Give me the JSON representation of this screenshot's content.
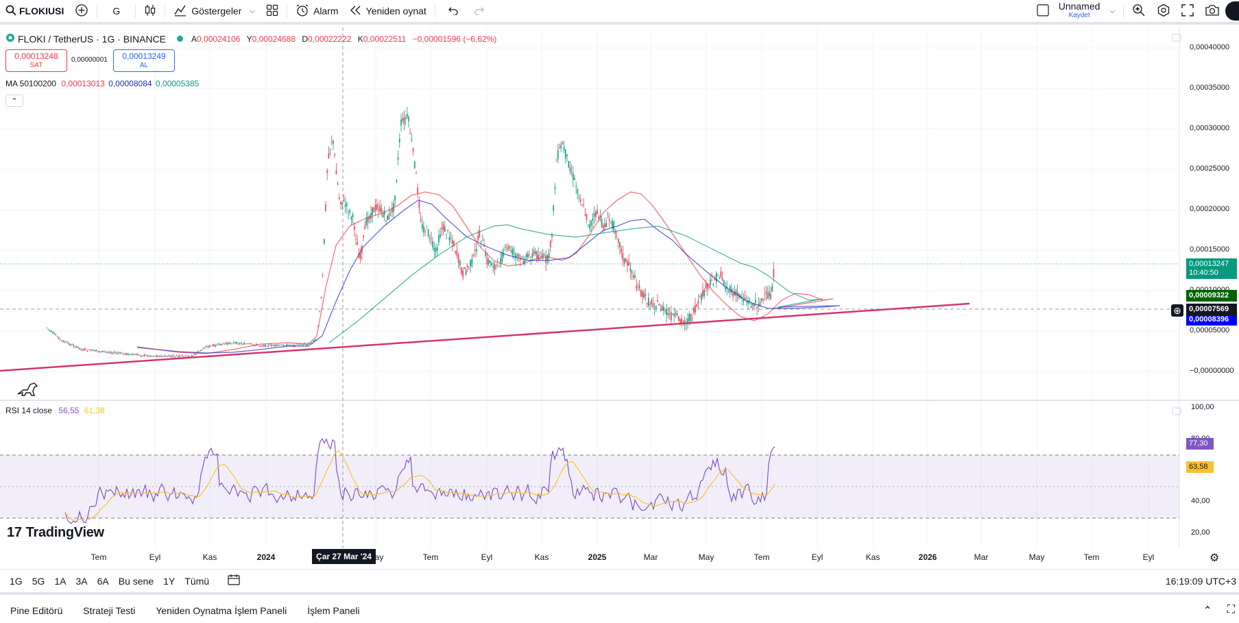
{
  "toolbar": {
    "symbol": "FLOKIUSI",
    "interval": "G",
    "indicators": "Göstergeler",
    "alarm": "Alarm",
    "replay": "Yeniden oynat",
    "layout_name": "Unnamed",
    "save_status": "Kaydet"
  },
  "legend": {
    "title": "FLOKI / TetherUS · 1G · BINANCE",
    "open_label": "A",
    "open": "0,00024106",
    "high_label": "Y",
    "high": "0,00024688",
    "low_label": "D",
    "low": "0,00022222",
    "close_label": "K",
    "close": "0,00022511",
    "change": "−0,00001596 (−6,62%)"
  },
  "trade": {
    "sell_price": "0,00013248",
    "sell_label": "SAT",
    "spread": "0,00000001",
    "buy_price": "0,00013249",
    "buy_label": "AL"
  },
  "ma": {
    "label": "MA 50100200",
    "v1": "0,00013013",
    "v2": "0,00008084",
    "v3": "0,00005385",
    "colors": [
      "#f23645",
      "#2a2eb8",
      "#089981"
    ]
  },
  "rsi": {
    "label": "RSI 14 close",
    "v1": "56,55",
    "v2": "61,38"
  },
  "price_axis": [
    "0,00040000",
    "0,00035000",
    "0,00030000",
    "0,00025000",
    "0,00020000",
    "0,00015000",
    "0,00010000",
    "0,00005000",
    "−0,00000000"
  ],
  "price_tags": {
    "last": "0,00013247",
    "countdown": "10:40:50",
    "ma_green": "0,00009322",
    "crosshair": "0,00007569",
    "ma_blue": "0,00008396"
  },
  "rsi_axis": [
    "100,00",
    "80,00",
    "40,00",
    "20,00"
  ],
  "rsi_tags": {
    "rsi": "77,30",
    "ma": "63,58"
  },
  "time_axis": [
    "Tem",
    "Eyl",
    "Kas",
    "2024",
    "May",
    "Tem",
    "Eyl",
    "Kas",
    "2025",
    "Mar",
    "May",
    "Tem",
    "Eyl",
    "Kas",
    "2026",
    "Mar",
    "May",
    "Tem",
    "Eyl"
  ],
  "crosshair_date": "Çar 27 Mar '24",
  "logo": "TradingView",
  "ranges": [
    "1G",
    "5G",
    "1A",
    "3A",
    "6A",
    "Bu sene",
    "1Y",
    "Tümü"
  ],
  "clock": "16:19:09 UTC+3",
  "bottom_tabs": [
    "Pine Editörü",
    "Strateji Testi",
    "Yeniden Oynatma İşlem Paneli",
    "İşlem Paneli"
  ],
  "icons": [
    "search-icon",
    "plus-circle-icon",
    "candles-icon",
    "indicators-icon",
    "layouts-icon",
    "alarm-icon",
    "replay-icon",
    "undo-icon",
    "redo-icon",
    "quick-search-icon",
    "settings-icon",
    "fullscreen-icon",
    "camera-icon"
  ]
}
